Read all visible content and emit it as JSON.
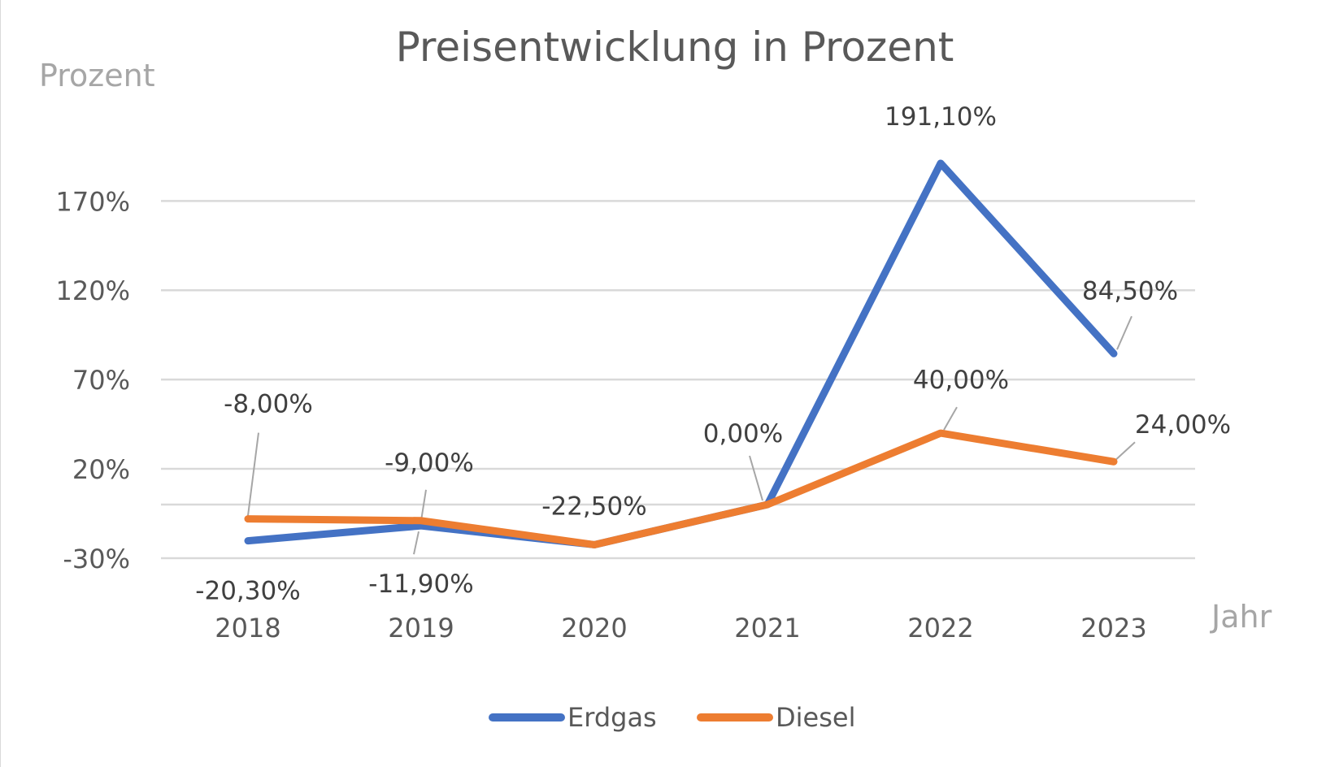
{
  "chart_data": {
    "type": "line",
    "title": "Preisentwicklung in Prozent",
    "xlabel": "Jahr",
    "ylabel": "Prozent",
    "categories": [
      "2018",
      "2019",
      "2020",
      "2021",
      "2022",
      "2023"
    ],
    "y_ticks": [
      -30,
      20,
      70,
      120,
      170
    ],
    "y_tick_labels": [
      "-30%",
      "20%",
      "70%",
      "120%",
      "170%"
    ],
    "ylim": [
      -30,
      190
    ],
    "grid": true,
    "legend_position": "bottom",
    "series": [
      {
        "name": "Erdgas",
        "color": "#4472c4",
        "values": [
          -20.3,
          -11.9,
          -22.5,
          0.0,
          191.1,
          84.5
        ],
        "labels": [
          "-20,30%",
          "-11,90%",
          "",
          "0,00%",
          "191,10%",
          "84,50%"
        ]
      },
      {
        "name": "Diesel",
        "color": "#ed7d31",
        "values": [
          -8.0,
          -9.0,
          -22.5,
          0.0,
          40.0,
          24.0
        ],
        "labels": [
          "-8,00%",
          "-9,00%",
          "-22,50%",
          "",
          "40,00%",
          "24,00%"
        ]
      }
    ]
  }
}
